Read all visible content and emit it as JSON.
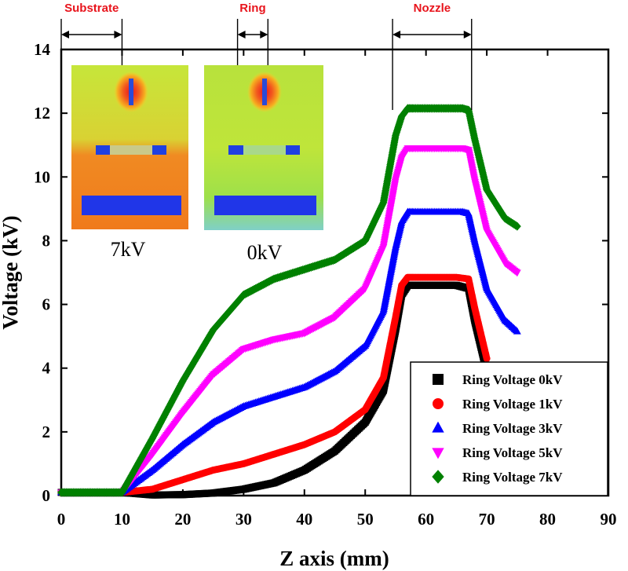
{
  "chart_data": {
    "type": "line",
    "title": "",
    "xlabel": "Z axis (mm)",
    "ylabel": "Voltage (kV)",
    "xlim": [
      0,
      90
    ],
    "ylim": [
      0,
      14
    ],
    "xticks": [
      0,
      10,
      20,
      30,
      40,
      50,
      60,
      70,
      80,
      90
    ],
    "yticks": [
      0,
      2,
      4,
      6,
      8,
      10,
      12,
      14
    ],
    "grid": false,
    "legend_position": "bottom-right",
    "series": [
      {
        "name": "Ring Voltage 0kV",
        "color": "#000000",
        "marker": "square",
        "x": [
          0,
          10,
          15,
          20,
          25,
          30,
          35,
          40,
          45,
          50,
          53,
          55,
          56,
          57,
          58,
          65,
          67,
          68,
          70
        ],
        "y": [
          0.1,
          0.1,
          0.02,
          0.03,
          0.08,
          0.2,
          0.4,
          0.8,
          1.4,
          2.3,
          3.3,
          5.2,
          6.3,
          6.6,
          6.6,
          6.6,
          6.5,
          5.5,
          3.9
        ]
      },
      {
        "name": "Ring Voltage 1kV",
        "color": "#ff0000",
        "marker": "circle",
        "x": [
          0,
          10,
          15,
          20,
          25,
          30,
          35,
          40,
          45,
          50,
          53,
          55,
          56,
          57,
          58,
          65,
          67,
          68,
          70
        ],
        "y": [
          0.1,
          0.1,
          0.2,
          0.5,
          0.8,
          1.0,
          1.3,
          1.6,
          2.0,
          2.7,
          3.7,
          5.6,
          6.6,
          6.85,
          6.85,
          6.85,
          6.8,
          5.9,
          4.3
        ]
      },
      {
        "name": "Ring Voltage 3kV",
        "color": "#0000ff",
        "marker": "triangle-up",
        "x": [
          0,
          10,
          15,
          20,
          25,
          30,
          35,
          40,
          45,
          50,
          53,
          55,
          56,
          57,
          58,
          66,
          67,
          68,
          70,
          73,
          75
        ],
        "y": [
          0.1,
          0.1,
          0.8,
          1.6,
          2.3,
          2.8,
          3.1,
          3.4,
          3.9,
          4.7,
          5.8,
          7.8,
          8.6,
          8.9,
          8.9,
          8.9,
          8.85,
          8.0,
          6.5,
          5.5,
          5.15
        ]
      },
      {
        "name": "Ring Voltage 5kV",
        "color": "#ff00ff",
        "marker": "triangle-down",
        "x": [
          0,
          10,
          15,
          20,
          25,
          30,
          35,
          40,
          45,
          50,
          53,
          55,
          56,
          57,
          58,
          66,
          67,
          68,
          70,
          73,
          75
        ],
        "y": [
          0.1,
          0.1,
          1.3,
          2.6,
          3.8,
          4.6,
          4.9,
          5.1,
          5.6,
          6.5,
          7.8,
          9.9,
          10.6,
          10.9,
          10.9,
          10.9,
          10.85,
          9.9,
          8.3,
          7.3,
          7.0
        ]
      },
      {
        "name": "Ring Voltage 7kV",
        "color": "#008000",
        "marker": "diamond",
        "x": [
          0,
          10,
          15,
          20,
          25,
          30,
          35,
          40,
          45,
          50,
          53,
          55,
          56,
          57,
          58,
          66,
          67,
          68,
          70,
          73,
          75
        ],
        "y": [
          0.1,
          0.1,
          1.8,
          3.6,
          5.2,
          6.3,
          6.8,
          7.1,
          7.4,
          8.0,
          9.2,
          11.3,
          11.9,
          12.15,
          12.15,
          12.15,
          12.1,
          11.2,
          9.6,
          8.7,
          8.45
        ]
      }
    ],
    "regions": [
      {
        "label": "Substrate",
        "x_start": 0,
        "x_end": 10
      },
      {
        "label": "Ring",
        "x_start": 29,
        "x_end": 34
      },
      {
        "label": "Nozzle",
        "x_start": 54.5,
        "x_end": 67.5
      }
    ],
    "insets": [
      {
        "label": "7kV"
      },
      {
        "label": "0kV"
      }
    ]
  }
}
